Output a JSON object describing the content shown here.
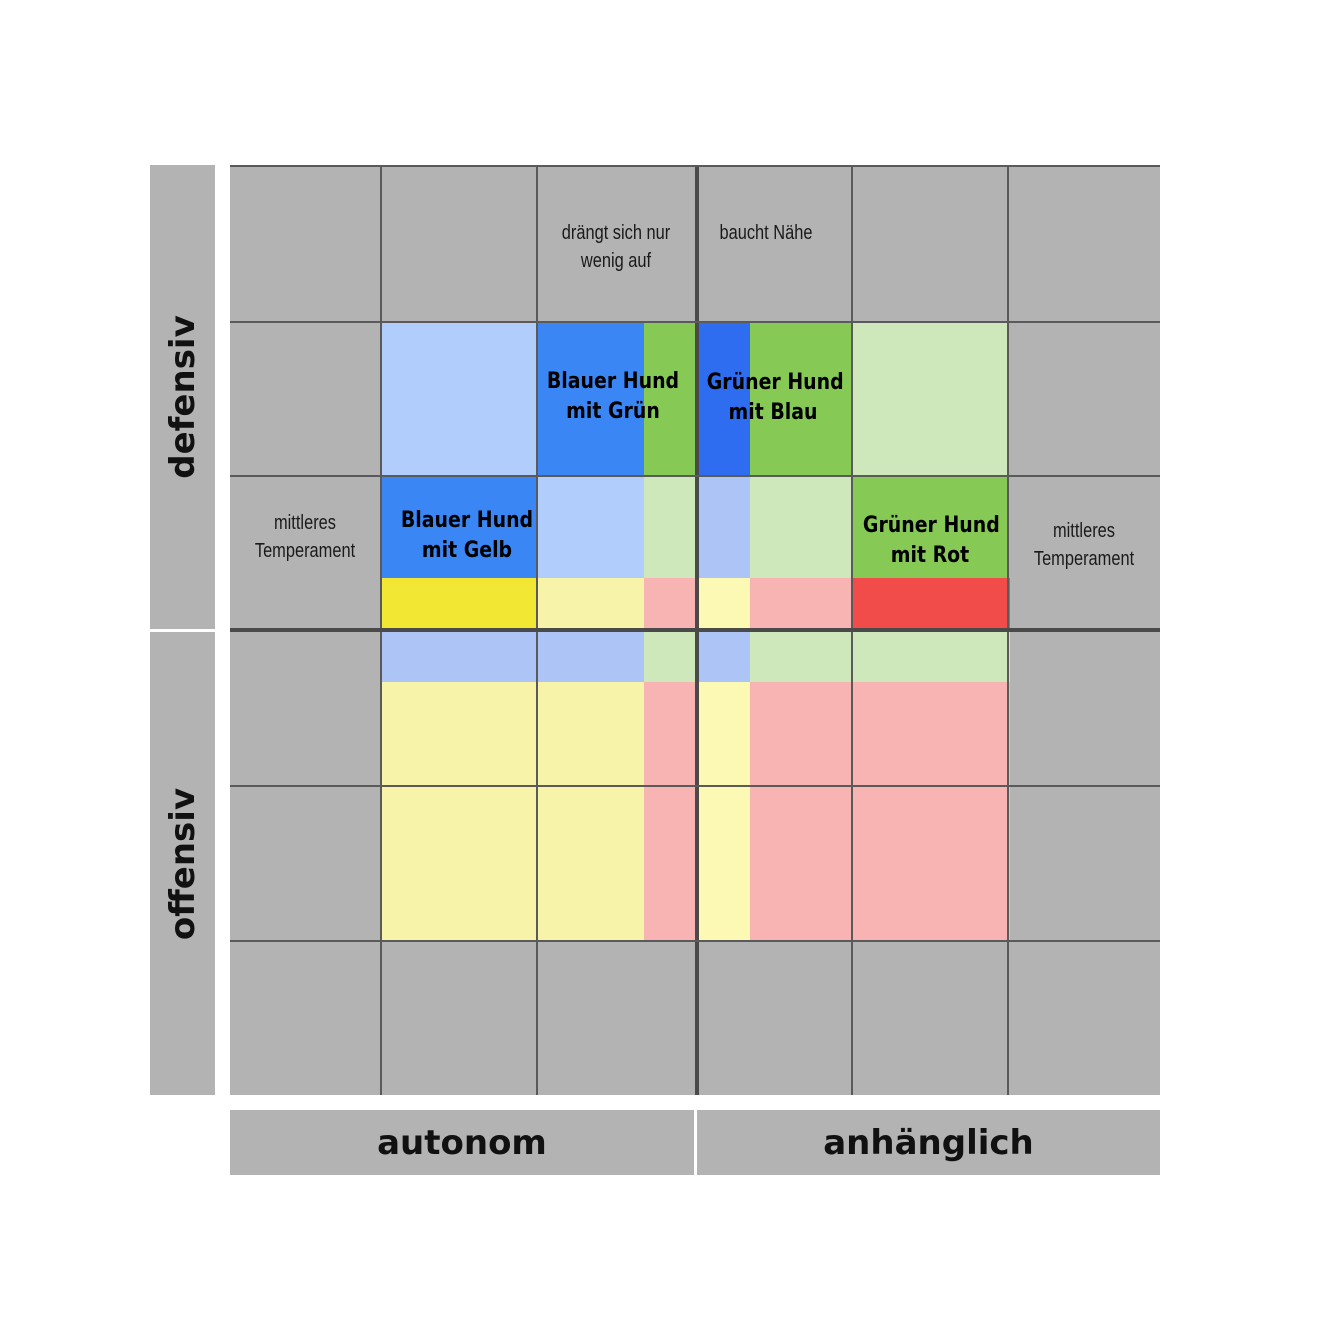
{
  "axes": {
    "defensive": "defensiv",
    "offensive": "offensiv",
    "autonomous": "autonom",
    "dependent": "anhänglich"
  },
  "notes": {
    "top_left": [
      "drängt sich nur",
      "wenig auf"
    ],
    "top_right": [
      "baucht  Nähe"
    ],
    "mid_left": [
      "mittleres",
      "Temperament"
    ],
    "mid_right": [
      "mittleres",
      "Temperament"
    ]
  },
  "dogs": {
    "blue_green": [
      "Blauer Hund",
      "mit Grün"
    ],
    "green_blue": [
      "Grüner Hund",
      "mit Blau"
    ],
    "blue_yellow": [
      "Blauer Hund",
      "mit Gelb"
    ],
    "green_red": [
      "Grüner Hund",
      "mit Rot"
    ]
  },
  "colors": {
    "background_cell": "#b3b3b3",
    "grid_line": "#5a5a5a",
    "blue_strong": "#3a86f5",
    "blue_strong_dark": "#2f6df0",
    "blue_light": "#b0cdfb",
    "blue_light_alt": "#adc4f7",
    "green_strong": "#86c955",
    "green_light": "#cfe8bb",
    "yellow_strong": "#f2e733",
    "yellow_light": "#f7f3a8",
    "yellow_light_alt": "#fcf9b4",
    "red_strong": "#f24c4a",
    "red_light": "#f8b3b3"
  }
}
